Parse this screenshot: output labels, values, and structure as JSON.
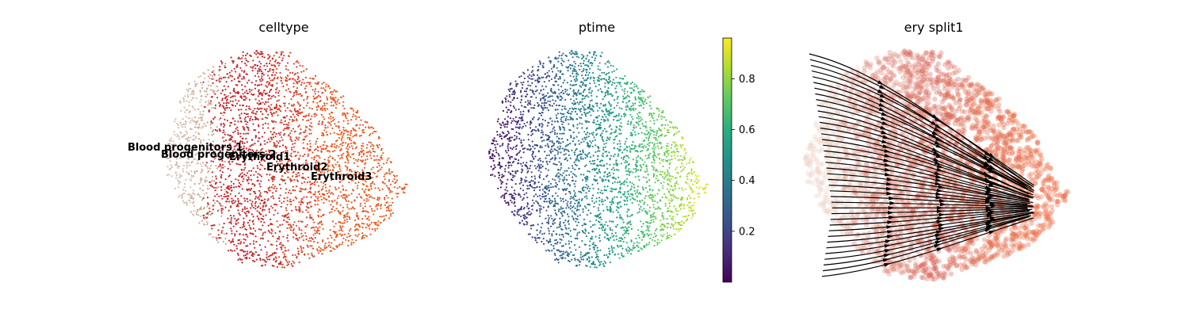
{
  "chart_data": [
    {
      "type": "scatter",
      "title": "celltype",
      "xlabel": "",
      "ylabel": "",
      "legend": "on data",
      "categories": [
        "Blood progenitors 1",
        "Blood progenitors 2",
        "Erythroid1",
        "Erythroid2",
        "Erythroid3"
      ],
      "colors": {
        "Blood progenitors 1": "#d3bfb0",
        "Blood progenitors 2": "#c9a48f",
        "Erythroid1": "#c3272b",
        "Erythroid2": "#d9452d",
        "Erythroid3": "#ea5a22"
      }
    },
    {
      "type": "scatter",
      "title": "ptime",
      "xlabel": "",
      "ylabel": "",
      "colormap": "viridis",
      "colorbar": {
        "ticks": [
          "0.2",
          "0.4",
          "0.6",
          "0.8"
        ],
        "tick_values": [
          0.2,
          0.4,
          0.6,
          0.8
        ],
        "range": [
          0.0,
          0.96
        ]
      }
    },
    {
      "type": "scatter",
      "title": "ery split1",
      "xlabel": "",
      "ylabel": "",
      "overlay": "velocity streamlines",
      "stream_color": "#000000"
    }
  ]
}
